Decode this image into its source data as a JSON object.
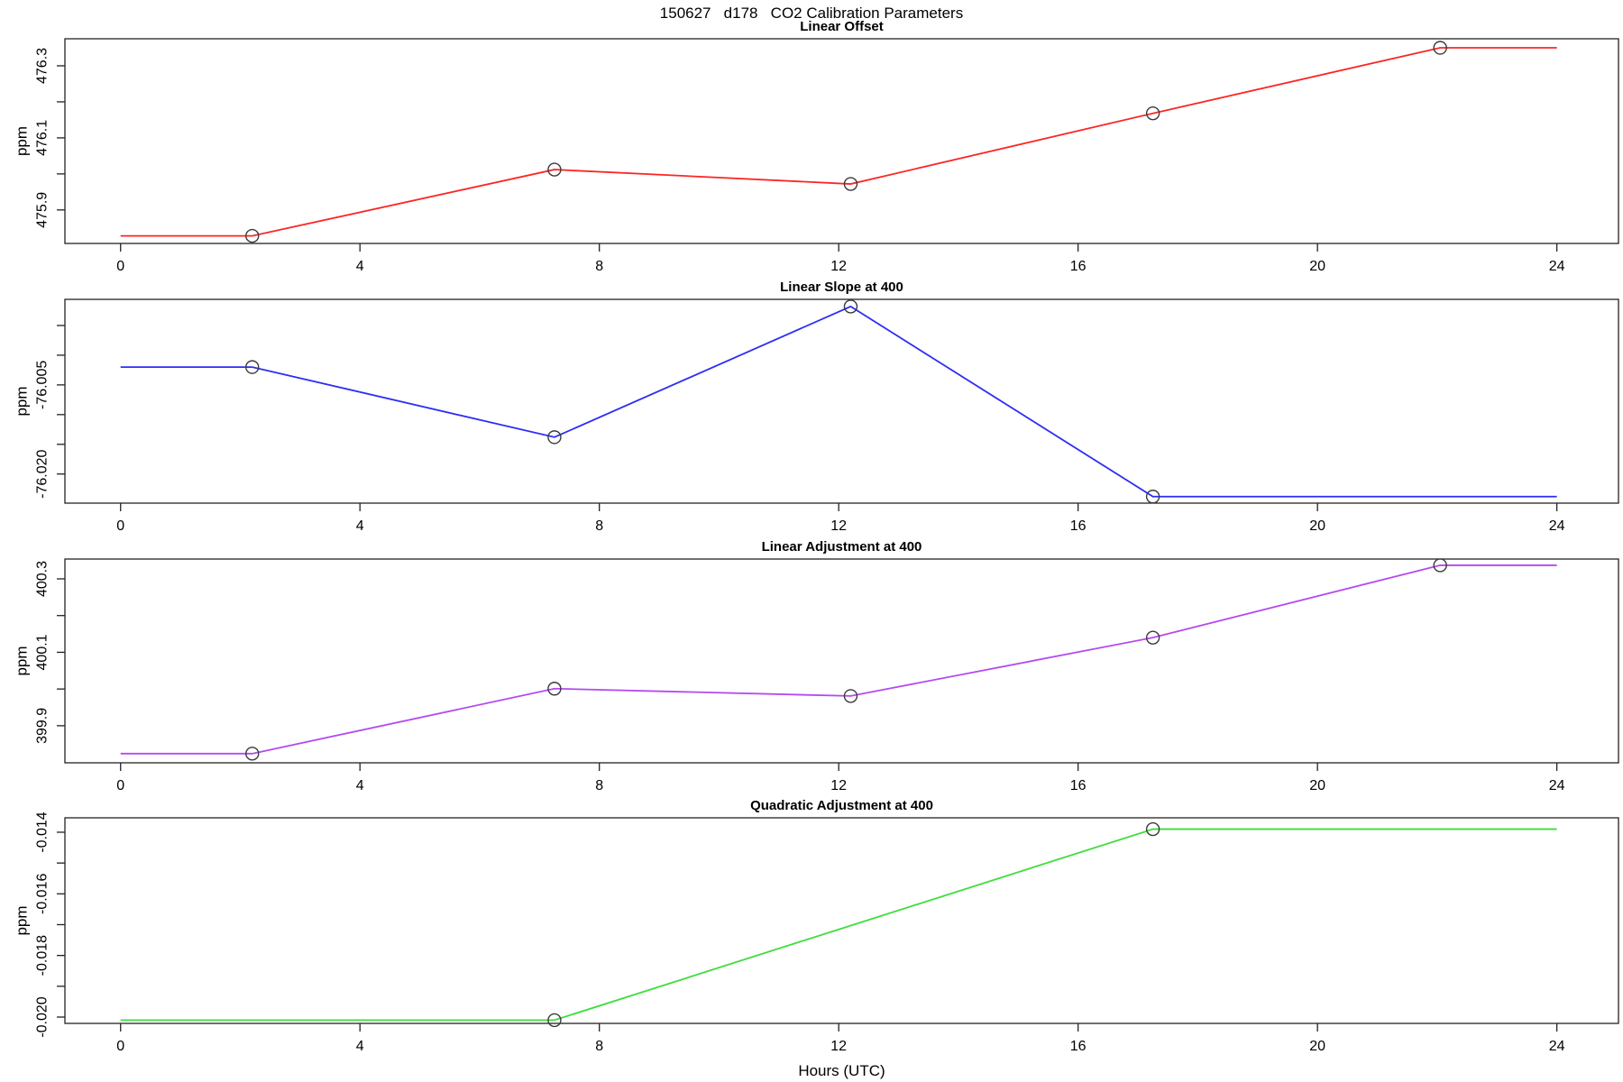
{
  "main": {
    "title": "150627   d178   CO2 Calibration Parameters",
    "xlabel": "Hours (UTC)"
  },
  "axes": {
    "xlim": [
      -0.93,
      25.03
    ],
    "x_ticks": [
      {
        "v": 0,
        "label": "0"
      },
      {
        "v": 4,
        "label": "4"
      },
      {
        "v": 8,
        "label": "8"
      },
      {
        "v": 12,
        "label": "12"
      },
      {
        "v": 16,
        "label": "16"
      },
      {
        "v": 20,
        "label": "20"
      },
      {
        "v": 24,
        "label": "24"
      }
    ],
    "marker": {
      "radius": 7,
      "stroke": "#3a3a3a"
    }
  },
  "chart_data": [
    {
      "type": "line",
      "title": "Linear Offset",
      "ylabel": "ppm",
      "color": "#fb2626",
      "ylim": [
        475.807,
        476.375
      ],
      "yticks": [
        {
          "v": 476.3,
          "label": "476.3"
        },
        {
          "v": 476.2,
          "label": ""
        },
        {
          "v": 476.1,
          "label": "476.1"
        },
        {
          "v": 476.0,
          "label": ""
        },
        {
          "v": 475.9,
          "label": "475.9"
        }
      ],
      "line": [
        [
          0,
          475.828
        ],
        [
          2.2,
          475.828
        ],
        [
          7.25,
          476.012
        ],
        [
          12.2,
          475.972
        ],
        [
          17.25,
          476.168
        ],
        [
          22.05,
          476.35
        ],
        [
          24,
          476.35
        ]
      ],
      "points": [
        [
          2.2,
          475.828
        ],
        [
          7.25,
          476.012
        ],
        [
          12.2,
          475.972
        ],
        [
          17.25,
          476.168
        ],
        [
          22.05,
          476.35
        ]
      ]
    },
    {
      "type": "line",
      "title": "Linear Slope at 400",
      "ylabel": "ppm",
      "color": "#2d2df5",
      "ylim": [
        -76.0249,
        -75.9906
      ],
      "yticks": [
        {
          "v": -75.995,
          "label": ""
        },
        {
          "v": -76.0,
          "label": ""
        },
        {
          "v": -76.005,
          "label": "-76.005"
        },
        {
          "v": -76.01,
          "label": ""
        },
        {
          "v": -76.015,
          "label": ""
        },
        {
          "v": -76.02,
          "label": "-76.020"
        }
      ],
      "line": [
        [
          0,
          -76.002
        ],
        [
          2.2,
          -76.002
        ],
        [
          7.25,
          -76.0138
        ],
        [
          12.2,
          -75.9918
        ],
        [
          17.25,
          -76.0238
        ],
        [
          24,
          -76.0238
        ]
      ],
      "points": [
        [
          2.2,
          -76.002
        ],
        [
          7.25,
          -76.0138
        ],
        [
          12.2,
          -75.9918
        ],
        [
          17.25,
          -76.0238
        ]
      ]
    },
    {
      "type": "line",
      "title": "Linear Adjustment at 400",
      "ylabel": "ppm",
      "color": "#b44af0",
      "ylim": [
        399.799,
        400.354
      ],
      "yticks": [
        {
          "v": 400.3,
          "label": "400.3"
        },
        {
          "v": 400.2,
          "label": ""
        },
        {
          "v": 400.1,
          "label": "400.1"
        },
        {
          "v": 400.0,
          "label": ""
        },
        {
          "v": 399.9,
          "label": "399.9"
        }
      ],
      "line": [
        [
          0,
          399.824
        ],
        [
          2.2,
          399.824
        ],
        [
          7.25,
          400.001
        ],
        [
          12.2,
          399.981
        ],
        [
          17.25,
          400.14
        ],
        [
          22.05,
          400.337
        ],
        [
          24,
          400.337
        ]
      ],
      "points": [
        [
          2.2,
          399.824
        ],
        [
          7.25,
          400.001
        ],
        [
          12.2,
          399.981
        ],
        [
          17.25,
          400.14
        ],
        [
          22.05,
          400.337
        ]
      ]
    },
    {
      "type": "line",
      "title": "Quadratic Adjustment at 400",
      "ylabel": "ppm",
      "color": "#3ddd3d",
      "ylim": [
        -0.020205,
        -0.013532
      ],
      "yticks": [
        {
          "v": -0.014,
          "label": "-0.014"
        },
        {
          "v": -0.015,
          "label": ""
        },
        {
          "v": -0.016,
          "label": "-0.016"
        },
        {
          "v": -0.017,
          "label": ""
        },
        {
          "v": -0.018,
          "label": "-0.018"
        },
        {
          "v": -0.019,
          "label": ""
        },
        {
          "v": -0.02,
          "label": "-0.020"
        }
      ],
      "line": [
        [
          0,
          -0.0201
        ],
        [
          7.25,
          -0.0201
        ],
        [
          17.25,
          -0.0139
        ],
        [
          24,
          -0.0139
        ]
      ],
      "points": [
        [
          7.25,
          -0.0201
        ],
        [
          17.25,
          -0.0139
        ]
      ]
    }
  ]
}
